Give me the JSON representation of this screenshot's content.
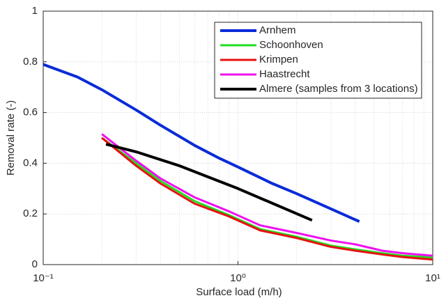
{
  "chart_data": {
    "type": "line",
    "xlabel": "Surface load (m/h)",
    "ylabel": "Removal rate (-)",
    "xscale": "log",
    "xlim": [
      0.1,
      10
    ],
    "xticks": [
      {
        "value": 0.1,
        "label": "10⁻¹"
      },
      {
        "value": 1,
        "label": "10⁰"
      },
      {
        "value": 10,
        "label": "10¹"
      }
    ],
    "xminorticks": [
      0.2,
      0.3,
      0.4,
      0.5,
      0.6,
      0.7,
      0.8,
      0.9,
      2,
      3,
      4,
      5,
      6,
      7,
      8,
      9
    ],
    "ylim": [
      0,
      1
    ],
    "yticks": [
      0,
      0.2,
      0.4,
      0.6,
      0.8,
      1
    ],
    "grid": true,
    "legend": "upper right",
    "series": [
      {
        "name": "Arnhem",
        "color": "#0a2bd8",
        "width": 4,
        "x": [
          0.1,
          0.15,
          0.2,
          0.3,
          0.4,
          0.6,
          0.8,
          1,
          1.5,
          2,
          3,
          4.2
        ],
        "values": [
          0.79,
          0.74,
          0.69,
          0.61,
          0.55,
          0.47,
          0.42,
          0.385,
          0.32,
          0.28,
          0.22,
          0.17
        ]
      },
      {
        "name": "Schoonhoven",
        "color": "#22dd22",
        "width": 3,
        "x": [
          0.2,
          0.3,
          0.4,
          0.6,
          0.9,
          1.3,
          2,
          3,
          4,
          5.5,
          7,
          10
        ],
        "values": [
          0.5,
          0.4,
          0.33,
          0.25,
          0.195,
          0.14,
          0.11,
          0.075,
          0.06,
          0.045,
          0.035,
          0.028
        ]
      },
      {
        "name": "Krimpen",
        "color": "#e81010",
        "width": 3,
        "x": [
          0.2,
          0.3,
          0.4,
          0.6,
          0.9,
          1.3,
          2,
          3,
          4,
          5.5,
          7,
          10
        ],
        "values": [
          0.5,
          0.39,
          0.32,
          0.24,
          0.19,
          0.135,
          0.105,
          0.07,
          0.055,
          0.04,
          0.03,
          0.02
        ]
      },
      {
        "name": "Haastrecht",
        "color": "#ee10ee",
        "width": 3,
        "x": [
          0.2,
          0.3,
          0.4,
          0.6,
          0.9,
          1.3,
          2,
          3,
          4,
          5.5,
          7,
          10
        ],
        "values": [
          0.515,
          0.41,
          0.34,
          0.265,
          0.21,
          0.155,
          0.125,
          0.095,
          0.08,
          0.055,
          0.045,
          0.035
        ]
      },
      {
        "name": "Almere (samples from 3 locations)",
        "color": "#000000",
        "width": 4,
        "x": [
          0.21,
          0.3,
          0.5,
          1,
          2.4
        ],
        "values": [
          0.475,
          0.445,
          0.39,
          0.3,
          0.175
        ]
      }
    ]
  }
}
